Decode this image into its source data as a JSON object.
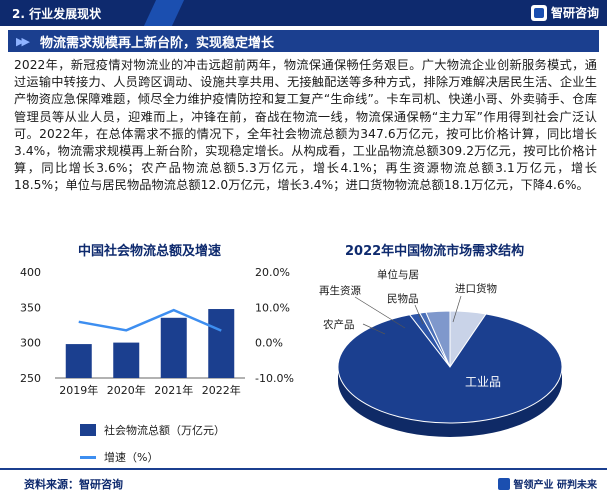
{
  "header": {
    "tab_title": "2. 行业发展现状",
    "logo_text": "智研咨询"
  },
  "section": {
    "title": "物流需求规模再上新台阶，实现稳定增长"
  },
  "paragraph": "2022年，新冠疫情对物流业的冲击远超前两年，物流保通保畅任务艰巨。广大物流企业创新服务模式，通过运输中转接力、人员跨区调动、设施共享共用、无接触配送等多种方式，排除万难解决居民生活、企业生产物资应急保障难题，倾尽全力维护疫情防控和复工复产“生命线”。卡车司机、快递小哥、外卖骑手、仓库管理员等从业人员，迎难而上，冲锋在前，奋战在物流一线，物流保通保畅“主力军”作用得到社会广泛认可。2022年，在总体需求不振的情况下，全年社会物流总额为347.6万亿元，按可比价格计算，同比增长3.4%，物流需求规模再上新台阶，实现稳定增长。从构成看，工业品物流总额309.2万亿元，按可比价格计算，同比增长3.6%；农产品物流总额5.3万亿元，增长4.1%；再生资源物流总额3.1万亿元，增长18.5%；单位与居民物品物流总额12.0万亿元，增长3.4%；进口货物物流总额18.1万亿元，下降4.6%。",
  "bar_chart": {
    "title": "中国社会物流总额及增速",
    "legend_bar": "社会物流总额（万亿元）",
    "legend_line": "增速（%）",
    "left_ticks": [
      "400",
      "350",
      "300",
      "250"
    ],
    "right_ticks": [
      "20.0%",
      "10.0%",
      "0.0%",
      "-10.0%"
    ]
  },
  "pie_chart": {
    "title": "2022年中国物流市场需求结构",
    "labels": {
      "industrial": "工业品",
      "agricultural": "农产品",
      "recycled": "再生资源",
      "residential": "单位与居",
      "personal": "民物品",
      "import": "进口货物"
    }
  },
  "chart_data": [
    {
      "type": "bar",
      "title": "中国社会物流总额及增速",
      "categories": [
        "2019年",
        "2020年",
        "2021年",
        "2022年"
      ],
      "series": [
        {
          "name": "社会物流总额（万亿元）",
          "type": "bar",
          "axis": "left",
          "values": [
            298.0,
            300.1,
            335.2,
            347.6
          ]
        },
        {
          "name": "增速（%）",
          "type": "line",
          "axis": "right",
          "values": [
            5.9,
            3.5,
            9.2,
            3.4
          ]
        }
      ],
      "ylim_left": [
        250,
        400
      ],
      "ylim_right": [
        -10,
        20
      ],
      "colors": {
        "bar": "#1b3f8f",
        "line": "#3d8ef0"
      }
    },
    {
      "type": "pie",
      "title": "2022年中国物流市场需求结构",
      "categories": [
        "工业品",
        "农产品",
        "再生资源",
        "单位与居民物品",
        "进口货物"
      ],
      "values": [
        309.2,
        5.3,
        3.1,
        12.0,
        18.1
      ],
      "colors": [
        "#1b3f8f",
        "#2d55a8",
        "#4a6fb8",
        "#7f98cc",
        "#c9d3e8"
      ]
    }
  ],
  "footer": {
    "source": "资料来源：智研咨询",
    "brand": "智领产业 研判未来"
  }
}
